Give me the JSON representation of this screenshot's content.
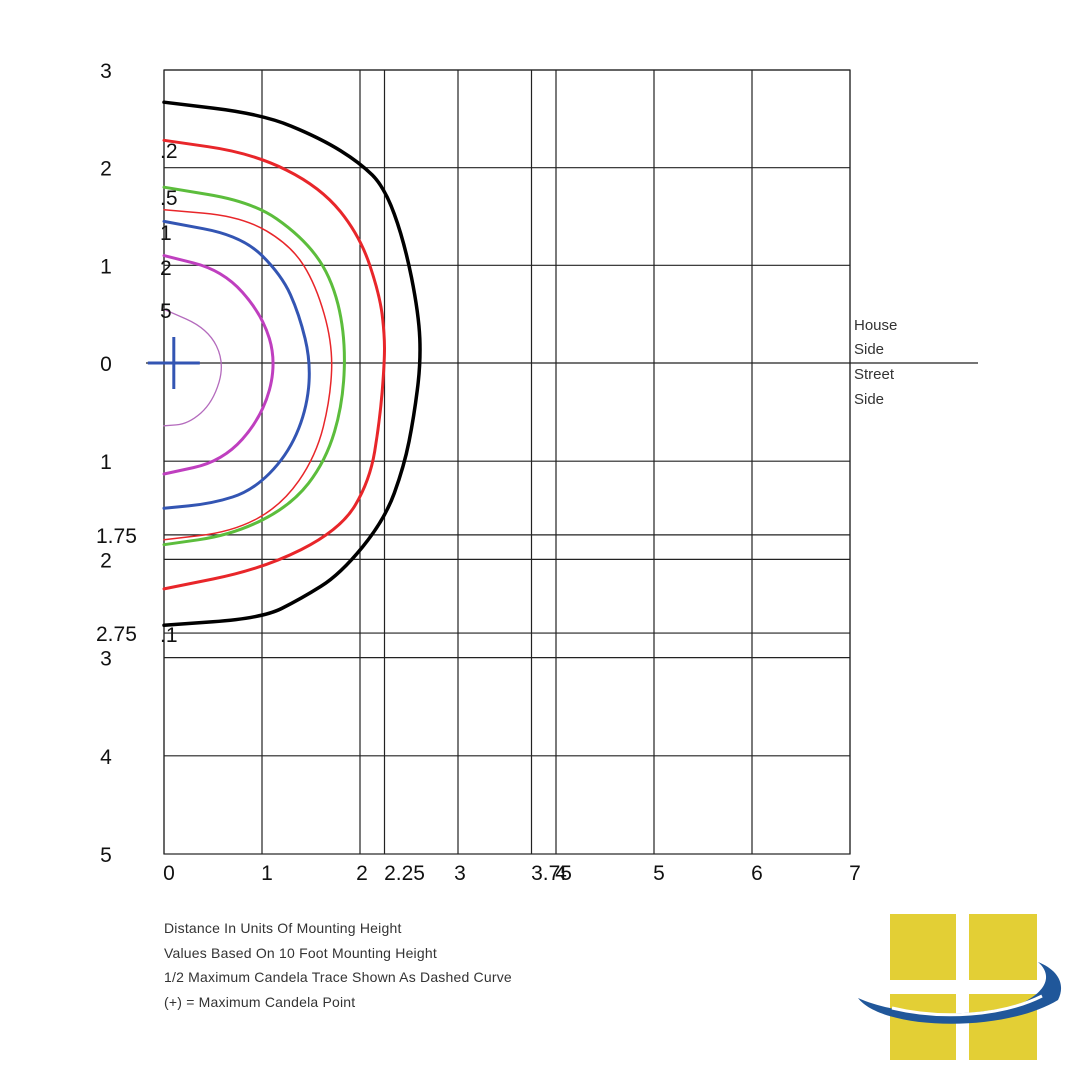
{
  "chart_data": {
    "type": "line",
    "title": "",
    "xlabel": "Distance In Units Of Mounting Height",
    "ylabel": "",
    "x_ticks": [
      "0",
      "1",
      "2",
      "2.25",
      "3",
      "3.75",
      "4",
      "5",
      "6",
      "7"
    ],
    "x_tick_values": [
      0,
      1,
      2,
      2.25,
      3,
      3.75,
      4,
      5,
      6,
      7
    ],
    "xlim": [
      0,
      7
    ],
    "y_house_ticks": [
      "3",
      "2",
      "1"
    ],
    "y_house_tick_values": [
      3,
      2,
      1
    ],
    "y_center_tick": "0",
    "y_street_ticks": [
      "1",
      "1.75",
      "2",
      "2.75",
      "3",
      "4",
      "5"
    ],
    "y_street_tick_values": [
      1,
      1.75,
      2,
      2.75,
      3,
      4,
      5
    ],
    "ylim_house": 3,
    "ylim_street": 5,
    "grid": true,
    "side_labels": [
      "House",
      "Side",
      "Street",
      "Side"
    ],
    "max_candela_point": {
      "x": 0.1,
      "y": 0
    },
    "series": [
      {
        "label": ".1",
        "color": "#000000",
        "width": 3.5,
        "dashed": false,
        "points": [
          [
            0,
            2.67
          ],
          [
            1,
            2.55
          ],
          [
            1.6,
            2.3
          ],
          [
            2.0,
            2.05
          ],
          [
            2.25,
            1.8
          ],
          [
            2.45,
            1.25
          ],
          [
            2.6,
            0.5
          ],
          [
            2.62,
            0
          ],
          [
            2.55,
            -0.55
          ],
          [
            2.45,
            -1.05
          ],
          [
            2.25,
            -1.6
          ],
          [
            1.8,
            -2.15
          ],
          [
            1.4,
            -2.4
          ],
          [
            1.0,
            -2.6
          ],
          [
            0,
            -2.67
          ]
        ]
      },
      {
        "label": ".2",
        "color": "#e8262a",
        "width": 3,
        "dashed": false,
        "points": [
          [
            0,
            2.28
          ],
          [
            0.9,
            2.15
          ],
          [
            1.6,
            1.8
          ],
          [
            2.0,
            1.3
          ],
          [
            2.2,
            0.7
          ],
          [
            2.25,
            0.3
          ],
          [
            2.25,
            0
          ],
          [
            2.2,
            -0.6
          ],
          [
            2.1,
            -1.2
          ],
          [
            1.8,
            -1.7
          ],
          [
            1.0,
            -2.1
          ],
          [
            0,
            -2.3
          ]
        ]
      },
      {
        "label": ".5",
        "color": "#5cbd3c",
        "width": 3,
        "dashed": false,
        "points": [
          [
            0,
            1.8
          ],
          [
            0.9,
            1.65
          ],
          [
            1.4,
            1.3
          ],
          [
            1.7,
            0.9
          ],
          [
            1.85,
            0.3
          ],
          [
            1.83,
            -0.4
          ],
          [
            1.65,
            -1.0
          ],
          [
            1.3,
            -1.45
          ],
          [
            0.7,
            -1.75
          ],
          [
            0,
            -1.85
          ]
        ]
      },
      {
        "label": "",
        "color": "#e8262a",
        "width": 1.5,
        "dashed": false,
        "points": [
          [
            0,
            1.57
          ],
          [
            0.8,
            1.5
          ],
          [
            1.3,
            1.2
          ],
          [
            1.55,
            0.8
          ],
          [
            1.72,
            0.2
          ],
          [
            1.7,
            -0.35
          ],
          [
            1.55,
            -0.95
          ],
          [
            1.2,
            -1.45
          ],
          [
            0.7,
            -1.72
          ],
          [
            0,
            -1.8
          ]
        ]
      },
      {
        "label": "1",
        "color": "#3355b3",
        "width": 3,
        "dashed": false,
        "points": [
          [
            0,
            1.45
          ],
          [
            0.8,
            1.3
          ],
          [
            1.2,
            0.9
          ],
          [
            1.38,
            0.5
          ],
          [
            1.5,
            0
          ],
          [
            1.45,
            -0.5
          ],
          [
            1.25,
            -0.95
          ],
          [
            0.9,
            -1.3
          ],
          [
            0.5,
            -1.43
          ],
          [
            0,
            -1.48
          ]
        ]
      },
      {
        "label": "2",
        "color": "#bf3fbf",
        "width": 3,
        "dashed": false,
        "points": [
          [
            0,
            1.1
          ],
          [
            0.6,
            0.95
          ],
          [
            1.0,
            0.5
          ],
          [
            1.15,
            0
          ],
          [
            1.0,
            -0.55
          ],
          [
            0.6,
            -1.0
          ],
          [
            0,
            -1.13
          ]
        ]
      },
      {
        "label": "5",
        "color": "#b46bbd",
        "width": 1.3,
        "dashed": false,
        "points": [
          [
            0,
            0.55
          ],
          [
            0.45,
            0.35
          ],
          [
            0.62,
            0
          ],
          [
            0.5,
            -0.4
          ],
          [
            0.25,
            -0.62
          ],
          [
            0,
            -0.64
          ]
        ]
      }
    ]
  },
  "notes": [
    "Distance In Units Of Mounting Height",
    "Values Based On 10 Foot Mounting Height",
    "1/2 Maximum Candela Trace Shown As Dashed Curve",
    "(+) = Maximum Candela Point"
  ]
}
